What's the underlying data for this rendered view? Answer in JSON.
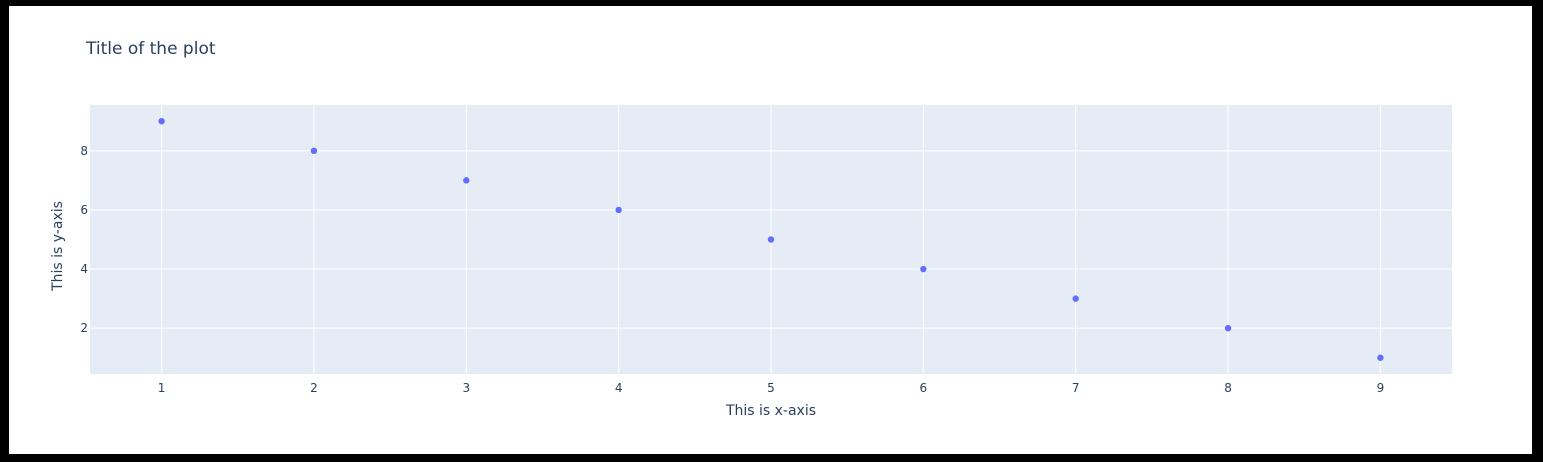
{
  "chart_data": {
    "type": "scatter",
    "title": "Title of the plot",
    "xlabel": "This is x-axis",
    "ylabel": "This is y-axis",
    "x": [
      1,
      2,
      3,
      4,
      5,
      6,
      7,
      8,
      9
    ],
    "y": [
      9,
      8,
      7,
      6,
      5,
      4,
      3,
      2,
      1
    ],
    "xlim": [
      0.53,
      9.47
    ],
    "ylim": [
      0.45,
      9.55
    ],
    "xticks": [
      1,
      2,
      3,
      4,
      5,
      6,
      7,
      8,
      9
    ],
    "yticks": [
      2,
      4,
      6,
      8
    ],
    "grid": true,
    "colors": {
      "marker": "#636efa",
      "plot_background": "#e5ecf6",
      "paper_background": "#ffffff",
      "grid": "#ffffff",
      "text": "#2a3f5f"
    }
  }
}
